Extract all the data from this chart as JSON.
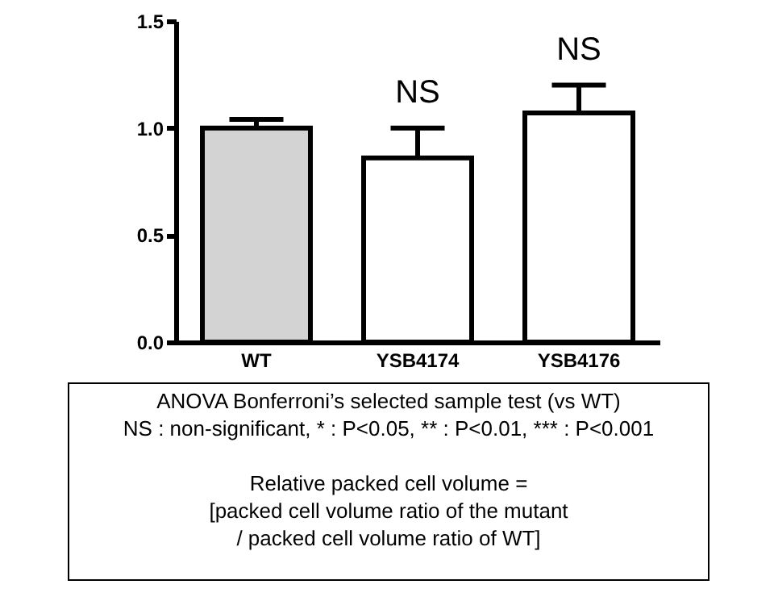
{
  "chart_data": {
    "type": "bar",
    "categories": [
      "WT",
      "YSB4174",
      "YSB4176"
    ],
    "values": [
      1.0,
      0.86,
      1.07
    ],
    "colors": [
      "#d3d3d3",
      "#ffffff",
      "#ffffff"
    ],
    "errors": [
      [
        1.0,
        1.04
      ],
      [
        0.86,
        1.0
      ],
      [
        1.07,
        1.2
      ]
    ],
    "ylim": [
      0,
      1.5
    ],
    "yticks": [
      {
        "value": 0,
        "label": "0.0"
      },
      0.5,
      {
        "value": 1,
        "label": "1.0"
      },
      1.5
    ],
    "grid": false,
    "annotations": [
      {
        "text": "NS",
        "x": "YSB4174",
        "y": 1.0
      },
      {
        "text": "NS",
        "x": "YSB4176",
        "y": 1.2
      },
      "ANOVA Bonferroni’s selected sample test (vs WT)",
      "NS : non-significant, * : P<0.05, ** : P<0.01, *** : P<0.001",
      "Relative packed cell volume =",
      "[packed cell volume ratio of the mutant",
      "/ packed cell volume ratio of WT]"
    ]
  }
}
